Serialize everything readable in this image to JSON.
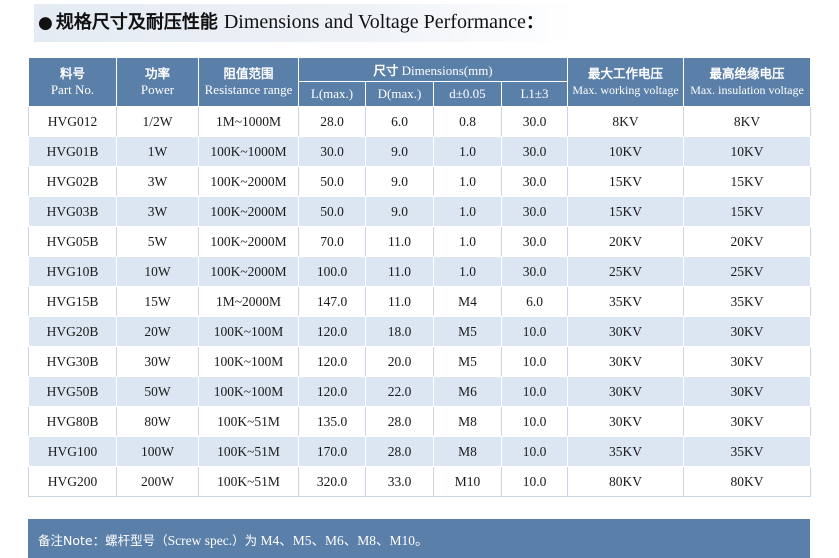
{
  "title": {
    "bullet": "●",
    "cn": "规格尺寸及耐压性能",
    "en": "Dimensions and Voltage Performance",
    "colon": "："
  },
  "table": {
    "headers": {
      "part_cn": "料号",
      "part_en": "Part No.",
      "power_cn": "功率",
      "power_en": "Power",
      "res_cn": "阻值范围",
      "res_en": "Resistance range",
      "dim_cn": "尺寸",
      "dim_en": "Dimensions(mm)",
      "L": "L(max.)",
      "D": "D(max.)",
      "d": "d±0.05",
      "L1": "L1±3",
      "work_cn": "最大工作电压",
      "work_en": "Max. working voltage",
      "ins_cn": "最高绝缘电压",
      "ins_en": "Max. insulation voltage"
    },
    "rows": [
      {
        "part": "HVG012",
        "power": "1/2W",
        "res": "1M~1000M",
        "L": "28.0",
        "D": "6.0",
        "d": "0.8",
        "L1": "30.0",
        "work": "8KV",
        "ins": "8KV"
      },
      {
        "part": "HVG01B",
        "power": "1W",
        "res": "100K~1000M",
        "L": "30.0",
        "D": "9.0",
        "d": "1.0",
        "L1": "30.0",
        "work": "10KV",
        "ins": "10KV"
      },
      {
        "part": "HVG02B",
        "power": "3W",
        "res": "100K~2000M",
        "L": "50.0",
        "D": "9.0",
        "d": "1.0",
        "L1": "30.0",
        "work": "15KV",
        "ins": "15KV"
      },
      {
        "part": "HVG03B",
        "power": "3W",
        "res": "100K~2000M",
        "L": "50.0",
        "D": "9.0",
        "d": "1.0",
        "L1": "30.0",
        "work": "15KV",
        "ins": "15KV"
      },
      {
        "part": "HVG05B",
        "power": "5W",
        "res": "100K~2000M",
        "L": "70.0",
        "D": "11.0",
        "d": "1.0",
        "L1": "30.0",
        "work": "20KV",
        "ins": "20KV"
      },
      {
        "part": "HVG10B",
        "power": "10W",
        "res": "100K~2000M",
        "L": "100.0",
        "D": "11.0",
        "d": "1.0",
        "L1": "30.0",
        "work": "25KV",
        "ins": "25KV"
      },
      {
        "part": "HVG15B",
        "power": "15W",
        "res": "1M~2000M",
        "L": "147.0",
        "D": "11.0",
        "d": "M4",
        "L1": "6.0",
        "work": "35KV",
        "ins": "35KV"
      },
      {
        "part": "HVG20B",
        "power": "20W",
        "res": "100K~100M",
        "L": "120.0",
        "D": "18.0",
        "d": "M5",
        "L1": "10.0",
        "work": "30KV",
        "ins": "30KV"
      },
      {
        "part": "HVG30B",
        "power": "30W",
        "res": "100K~100M",
        "L": "120.0",
        "D": "20.0",
        "d": "M5",
        "L1": "10.0",
        "work": "30KV",
        "ins": "30KV"
      },
      {
        "part": "HVG50B",
        "power": "50W",
        "res": "100K~100M",
        "L": "120.0",
        "D": "22.0",
        "d": "M6",
        "L1": "10.0",
        "work": "30KV",
        "ins": "30KV"
      },
      {
        "part": "HVG80B",
        "power": "80W",
        "res": "100K~51M",
        "L": "135.0",
        "D": "28.0",
        "d": "M8",
        "L1": "10.0",
        "work": "30KV",
        "ins": "30KV"
      },
      {
        "part": "HVG100",
        "power": "100W",
        "res": "100K~51M",
        "L": "170.0",
        "D": "28.0",
        "d": "M8",
        "L1": "10.0",
        "work": "35KV",
        "ins": "35KV"
      },
      {
        "part": "HVG200",
        "power": "200W",
        "res": "100K~51M",
        "L": "320.0",
        "D": "33.0",
        "d": "M10",
        "L1": "10.0",
        "work": "80KV",
        "ins": "80KV"
      }
    ]
  },
  "note": {
    "prefix_cn": "备注Note：螺杆型号（",
    "spec_en": "Screw spec.",
    "mid_cn": "）为",
    "values": "M4、M5、M6、M8、M10。"
  },
  "colors": {
    "header_bg": "#5a7fa8",
    "stripe_bg": "#dce6f2"
  }
}
